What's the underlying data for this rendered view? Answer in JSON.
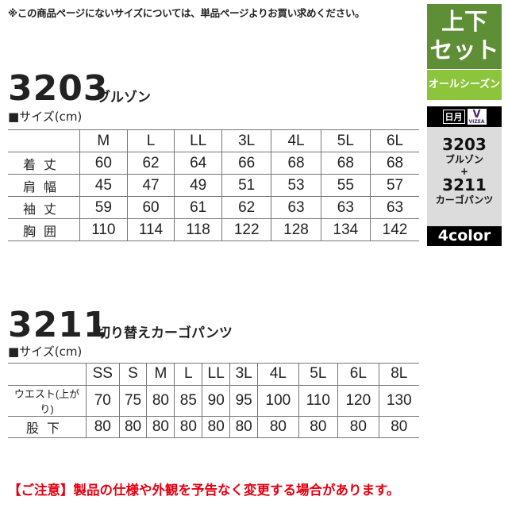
{
  "note": "※この商品ページにないサイズについては、単品ページよりお買い求めください。",
  "jacket": {
    "code": "3203",
    "name": "ブルゾン",
    "size_label": "■サイズ(cm)",
    "sizes": [
      "M",
      "L",
      "LL",
      "3L",
      "4L",
      "5L",
      "6L"
    ],
    "rows": [
      {
        "label": "着丈",
        "values": [
          "60",
          "62",
          "64",
          "66",
          "68",
          "68",
          "68"
        ]
      },
      {
        "label": "肩幅",
        "values": [
          "45",
          "47",
          "49",
          "51",
          "53",
          "55",
          "57"
        ]
      },
      {
        "label": "袖丈",
        "values": [
          "59",
          "60",
          "61",
          "62",
          "63",
          "63",
          "63"
        ]
      },
      {
        "label": "胸囲",
        "values": [
          "110",
          "114",
          "118",
          "122",
          "128",
          "134",
          "142"
        ]
      }
    ]
  },
  "pants": {
    "code": "3211",
    "name": "切り替えカーゴパンツ",
    "size_label": "■サイズ(cm)",
    "sizes": [
      "SS",
      "S",
      "M",
      "L",
      "LL",
      "3L",
      "4L",
      "5L",
      "6L",
      "8L"
    ],
    "rows": [
      {
        "label": "ウエスト(上がり)",
        "values": [
          "70",
          "75",
          "80",
          "85",
          "90",
          "95",
          "100",
          "110",
          "120",
          "130"
        ]
      },
      {
        "label": "股下",
        "values": [
          "80",
          "80",
          "80",
          "80",
          "80",
          "80",
          "80",
          "80",
          "80",
          "80"
        ]
      }
    ]
  },
  "panel": {
    "set_line1": "上下",
    "set_line2": "セット",
    "season": "オールシーズン",
    "badge_left": "日月",
    "brand": "VIZEA",
    "item1_code": "3203",
    "item1_name": "ブルゾン",
    "plus": "+",
    "item2_code": "3211",
    "item2_name": "カーゴパンツ",
    "colors": "4color",
    "colors_hex": {
      "dark_green": "#5e8f36",
      "light_green": "#8cc43c",
      "gray": "#dcdcdc",
      "black": "#000000"
    }
  },
  "warning": "【ご注意】製品の仕様や外観を予告なく変更する場合があります。"
}
